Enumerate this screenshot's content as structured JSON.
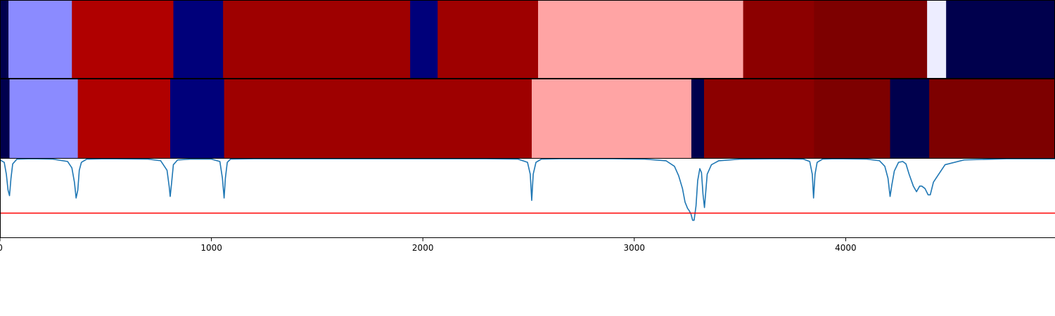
{
  "chart_data": {
    "type": "heatmap",
    "xlim": [
      0,
      4990
    ],
    "x_ticks": [
      0,
      1000,
      2000,
      3000,
      4000
    ],
    "segment_tracks": [
      {
        "segments": [
          {
            "start": 0,
            "end": 40,
            "color": "#00004d"
          },
          {
            "start": 40,
            "end": 340,
            "color": "#8b8bff"
          },
          {
            "start": 340,
            "end": 820,
            "color": "#b00000"
          },
          {
            "start": 820,
            "end": 1055,
            "color": "#00007a"
          },
          {
            "start": 1055,
            "end": 1940,
            "color": "#9e0000"
          },
          {
            "start": 1940,
            "end": 2070,
            "color": "#00007a"
          },
          {
            "start": 2070,
            "end": 2545,
            "color": "#9e0000"
          },
          {
            "start": 2545,
            "end": 3515,
            "color": "#ffa4a4"
          },
          {
            "start": 3515,
            "end": 3850,
            "color": "#8c0000"
          },
          {
            "start": 3850,
            "end": 4385,
            "color": "#7d0000"
          },
          {
            "start": 4385,
            "end": 4475,
            "color": "#ededff"
          },
          {
            "start": 4475,
            "end": 4990,
            "color": "#00004d"
          }
        ]
      },
      {
        "segments": [
          {
            "start": 0,
            "end": 45,
            "color": "#00004d"
          },
          {
            "start": 45,
            "end": 368,
            "color": "#8b8bff"
          },
          {
            "start": 368,
            "end": 805,
            "color": "#b00000"
          },
          {
            "start": 805,
            "end": 1060,
            "color": "#00007a"
          },
          {
            "start": 1060,
            "end": 2515,
            "color": "#9e0000"
          },
          {
            "start": 2515,
            "end": 3270,
            "color": "#ffa4a4"
          },
          {
            "start": 3270,
            "end": 3330,
            "color": "#00004d"
          },
          {
            "start": 3330,
            "end": 3850,
            "color": "#8c0000"
          },
          {
            "start": 3850,
            "end": 4210,
            "color": "#7d0000"
          },
          {
            "start": 4210,
            "end": 4395,
            "color": "#00004d"
          },
          {
            "start": 4395,
            "end": 4990,
            "color": "#7d0000"
          }
        ]
      }
    ],
    "line_panel": {
      "ylim": [
        0,
        1
      ],
      "threshold": 0.31,
      "series": [
        {
          "color": "#1f77b4",
          "x": [
            0,
            20,
            30,
            38,
            45,
            52,
            60,
            80,
            150,
            250,
            320,
            340,
            352,
            360,
            368,
            375,
            385,
            410,
            500,
            700,
            760,
            790,
            800,
            805,
            812,
            820,
            840,
            900,
            1000,
            1040,
            1052,
            1060,
            1066,
            1075,
            1090,
            1200,
            1800,
            2300,
            2450,
            2495,
            2508,
            2515,
            2522,
            2535,
            2560,
            2650,
            2900,
            3050,
            3150,
            3190,
            3210,
            3228,
            3240,
            3252,
            3260,
            3268,
            3276,
            3283,
            3292,
            3300,
            3310,
            3318,
            3325,
            3332,
            3345,
            3365,
            3400,
            3500,
            3700,
            3800,
            3830,
            3842,
            3848,
            3855,
            3865,
            3890,
            3950,
            4100,
            4160,
            4185,
            4200,
            4210,
            4218,
            4230,
            4250,
            4270,
            4285,
            4300,
            4320,
            4335,
            4350,
            4360,
            4375,
            4390,
            4400,
            4415,
            4440,
            4470,
            4560,
            4760,
            4990
          ],
          "y": [
            0.98,
            0.95,
            0.8,
            0.6,
            0.53,
            0.75,
            0.93,
            0.99,
            0.995,
            0.99,
            0.96,
            0.88,
            0.7,
            0.5,
            0.6,
            0.85,
            0.95,
            0.99,
            0.995,
            0.99,
            0.97,
            0.85,
            0.65,
            0.52,
            0.7,
            0.92,
            0.98,
            0.99,
            0.99,
            0.96,
            0.75,
            0.5,
            0.75,
            0.95,
            0.99,
            0.995,
            0.995,
            0.995,
            0.99,
            0.95,
            0.8,
            0.47,
            0.8,
            0.95,
            0.99,
            0.995,
            0.995,
            0.99,
            0.97,
            0.9,
            0.78,
            0.62,
            0.45,
            0.37,
            0.34,
            0.3,
            0.22,
            0.22,
            0.4,
            0.72,
            0.87,
            0.82,
            0.55,
            0.38,
            0.8,
            0.92,
            0.97,
            0.99,
            0.995,
            0.99,
            0.96,
            0.8,
            0.5,
            0.8,
            0.95,
            0.99,
            0.995,
            0.99,
            0.97,
            0.9,
            0.75,
            0.52,
            0.66,
            0.84,
            0.95,
            0.96,
            0.93,
            0.8,
            0.65,
            0.58,
            0.65,
            0.65,
            0.62,
            0.54,
            0.54,
            0.7,
            0.8,
            0.92,
            0.98,
            0.995,
            0.995
          ]
        }
      ]
    }
  }
}
